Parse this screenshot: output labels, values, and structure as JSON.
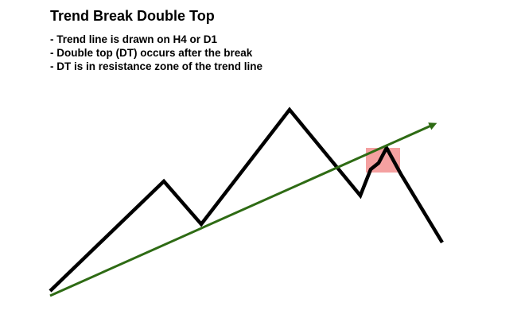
{
  "title": "Trend Break Double Top",
  "notes": [
    "- Trend line is drawn on H4 or D1",
    "- Double top (DT) occurs after the break",
    "- DT is in resistance zone of the trend line"
  ],
  "colors": {
    "price_path": "#000000",
    "trend_line": "#2e6b14",
    "resistance_zone": "#f08080"
  }
}
